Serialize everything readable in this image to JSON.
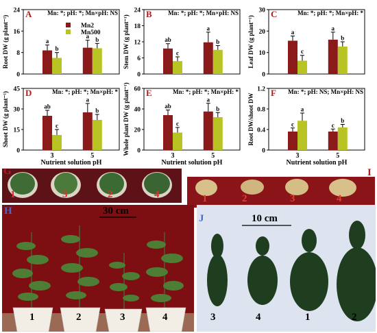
{
  "colors": {
    "mn2": "#8b1a1a",
    "mn500": "#b8c424",
    "letter": "#b31b1b",
    "panel_h_bg": "#7d0f12",
    "panel_i_bg": "#8a1418",
    "panel_j_bg": "#dde4ef"
  },
  "figure": {
    "legend": [
      "Mn2",
      "Mn500"
    ],
    "xlabel": "Nutrient solution pH",
    "categories": [
      "3",
      "5"
    ]
  },
  "chart_data": [
    {
      "type": "bar",
      "panel": "A",
      "stat": "Mn: *; pH: *; Mn×pH: NS",
      "ylabel": "Root DW (g plant⁻¹)",
      "ylim": [
        0,
        24
      ],
      "yticks": [
        0,
        8,
        16,
        24
      ],
      "categories": [
        "3",
        "5"
      ],
      "series": [
        {
          "name": "Mn2",
          "values": [
            8.8,
            9.8
          ],
          "errors": [
            2.0,
            2.8
          ],
          "letters": [
            "a",
            "a"
          ]
        },
        {
          "name": "Mn500",
          "values": [
            6.0,
            9.6
          ],
          "errors": [
            2.0,
            1.8
          ],
          "letters": [
            "b",
            "b"
          ]
        }
      ]
    },
    {
      "type": "bar",
      "panel": "B",
      "stat": "Mn: *; pH: *; Mn×pH: NS",
      "ylabel": "Stem DW (g plant⁻¹)",
      "ylim": [
        0,
        24
      ],
      "yticks": [
        0,
        6,
        12,
        18,
        24
      ],
      "categories": [
        "3",
        "5"
      ],
      "series": [
        {
          "name": "Mn2",
          "values": [
            9.5,
            11.8
          ],
          "errors": [
            1.8,
            3.8
          ],
          "letters": [
            "ab",
            "a"
          ]
        },
        {
          "name": "Mn500",
          "values": [
            4.8,
            9.0
          ],
          "errors": [
            1.6,
            1.6
          ],
          "letters": [
            "c",
            "b"
          ]
        }
      ]
    },
    {
      "type": "bar",
      "panel": "C",
      "stat": "Mn: *; pH: *; Mn×pH: *",
      "ylabel": "Leaf DW (g plant⁻¹)",
      "ylim": [
        0,
        30
      ],
      "yticks": [
        0,
        10,
        20,
        30
      ],
      "categories": [
        "3",
        "5"
      ],
      "series": [
        {
          "name": "Mn2",
          "values": [
            15.5,
            16.0
          ],
          "errors": [
            2.2,
            3.5
          ],
          "letters": [
            "a",
            "a"
          ]
        },
        {
          "name": "Mn500",
          "values": [
            6.2,
            12.8
          ],
          "errors": [
            2.5,
            2.2
          ],
          "letters": [
            "c",
            "b"
          ]
        }
      ]
    },
    {
      "type": "bar",
      "panel": "D",
      "stat": "Mn: *; pH: *; Mn×pH: *",
      "ylabel": "Shoot DW (g plant⁻¹)",
      "ylim": [
        0,
        45
      ],
      "yticks": [
        0,
        15,
        30,
        45
      ],
      "categories": [
        "3",
        "5"
      ],
      "series": [
        {
          "name": "Mn2",
          "values": [
            25.0,
            27.5
          ],
          "errors": [
            4.0,
            6.5
          ],
          "letters": [
            "ab",
            "a"
          ]
        },
        {
          "name": "Mn500",
          "values": [
            11.0,
            22.0
          ],
          "errors": [
            4.0,
            4.0
          ],
          "letters": [
            "c",
            "b"
          ]
        }
      ]
    },
    {
      "type": "bar",
      "panel": "E",
      "stat": "Mn: *; pH: *; Mn×pH: *",
      "ylabel": "Whole plant DW (g plant⁻¹)",
      "ylim": [
        0,
        60
      ],
      "yticks": [
        0,
        20,
        40,
        60
      ],
      "categories": [
        "3",
        "5"
      ],
      "series": [
        {
          "name": "Mn2",
          "values": [
            34.0,
            37.5
          ],
          "errors": [
            5.0,
            8.0
          ],
          "letters": [
            "ab",
            "a"
          ]
        },
        {
          "name": "Mn500",
          "values": [
            17.0,
            32.0
          ],
          "errors": [
            5.0,
            4.5
          ],
          "letters": [
            "c",
            "b"
          ]
        }
      ]
    },
    {
      "type": "bar",
      "panel": "F",
      "stat": "Mn: *; pH: NS; Mn×pH: NS",
      "ylabel": "Root DW/shoot DW",
      "ylim": [
        0,
        1.2
      ],
      "yticks": [
        0,
        0.4,
        0.8,
        1.2
      ],
      "categories": [
        "3",
        "5"
      ],
      "series": [
        {
          "name": "Mn2",
          "values": [
            0.36,
            0.36
          ],
          "errors": [
            0.07,
            0.05
          ],
          "letters": [
            "c",
            "c"
          ]
        },
        {
          "name": "Mn500",
          "values": [
            0.57,
            0.44
          ],
          "errors": [
            0.15,
            0.06
          ],
          "letters": [
            "a",
            "b"
          ]
        }
      ]
    }
  ],
  "photos": {
    "g": {
      "label": "G",
      "numbers": [
        "1",
        "3",
        "2",
        "4"
      ]
    },
    "i": {
      "label": "I",
      "numbers": [
        "1",
        "2",
        "3",
        "4"
      ]
    },
    "h": {
      "label": "H",
      "scale": "30 cm",
      "numbers": [
        "1",
        "2",
        "3",
        "4"
      ]
    },
    "j": {
      "label": "J",
      "scale": "10 cm",
      "numbers": [
        "3",
        "4",
        "1",
        "2"
      ]
    }
  }
}
